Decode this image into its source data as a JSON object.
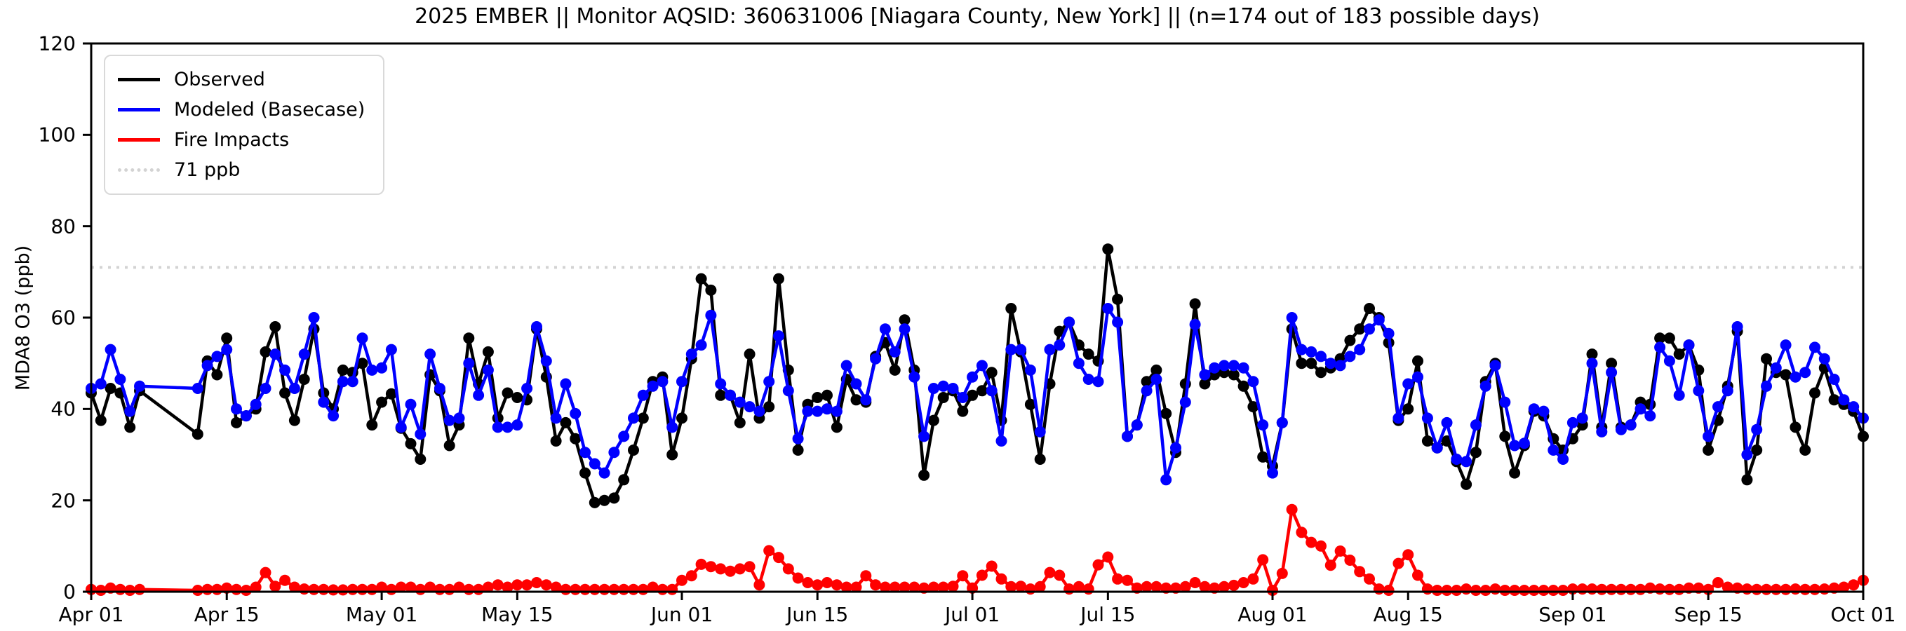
{
  "title": "2025 EMBER || Monitor AQSID: 360631006 [Niagara County, New York] || (n=174 out of 183 possible days)",
  "y_axis": {
    "label": "MDA8 O3 (ppb)",
    "tick_labels": [
      "0",
      "20",
      "40",
      "60",
      "80",
      "100",
      "120"
    ],
    "tick_values": [
      0,
      20,
      40,
      60,
      80,
      100,
      120
    ],
    "lim": [
      0,
      120
    ]
  },
  "x_axis": {
    "tick_labels": [
      "Apr 01",
      "Apr 15",
      "May 01",
      "May 15",
      "Jun 01",
      "Jun 15",
      "Jul 01",
      "Jul 15",
      "Aug 01",
      "Aug 15",
      "Sep 01",
      "Sep 15",
      "Oct 01"
    ],
    "tick_days": [
      0,
      14,
      30,
      44,
      61,
      75,
      91,
      105,
      122,
      136,
      153,
      167,
      183
    ],
    "lim_days": [
      0,
      183
    ]
  },
  "legend": {
    "items": [
      {
        "label": "Observed",
        "color": "#000000",
        "style": "solid"
      },
      {
        "label": "Modeled (Basecase)",
        "color": "#0000ff",
        "style": "solid"
      },
      {
        "label": "Fire Impacts",
        "color": "#ff0000",
        "style": "solid"
      },
      {
        "label": "71 ppb",
        "color": "#d3d3d3",
        "style": "dotted"
      }
    ]
  },
  "threshold": {
    "value": 71,
    "label": "71 ppb",
    "color": "#d3d3d3"
  },
  "chart_data": {
    "type": "line",
    "x_start_date": "Apr 01",
    "x_end_date": "Oct 01",
    "days_total": 184,
    "title": "2025 EMBER || Monitor AQSID: 360631006 [Niagara County, New York] || (n=174 out of 183 possible days)",
    "xlabel": "",
    "ylabel": "MDA8 O3 (ppb)",
    "ylim": [
      0,
      120
    ],
    "grid": false,
    "legend_position": "upper left",
    "threshold_line": 71,
    "series": [
      {
        "name": "Observed",
        "color": "#000000",
        "marker": "circle",
        "values": [
          43.5,
          37.5,
          44.5,
          43.5,
          36,
          44,
          null,
          null,
          null,
          null,
          null,
          34.5,
          50.5,
          47.5,
          55.5,
          37,
          38.5,
          40,
          52.5,
          58,
          43.5,
          37.5,
          46.5,
          57.5,
          43.5,
          40,
          48.5,
          48,
          50,
          36.5,
          41.5,
          43.3,
          35.8,
          32.4,
          29,
          47.5,
          44,
          32,
          36.5,
          55.5,
          45.5,
          52.5,
          38,
          43.5,
          42.5,
          42,
          57.5,
          47,
          33,
          37,
          33.5,
          26,
          19.5,
          20,
          20.5,
          24.5,
          31,
          38,
          46,
          47,
          30,
          38,
          51,
          68.5,
          66,
          43,
          43,
          37,
          52,
          38,
          40.5,
          68.5,
          48.5,
          31,
          41,
          42.5,
          43,
          36,
          46.5,
          42,
          41.5,
          51.5,
          54.5,
          48.5,
          59.5,
          48.5,
          25.5,
          37.5,
          42.5,
          44,
          39.5,
          43,
          44,
          48,
          37.5,
          62,
          52.5,
          41,
          29,
          45.5,
          57,
          59,
          54,
          52,
          50.5,
          75,
          64,
          34,
          36.5,
          46,
          48.5,
          39,
          30.5,
          45.5,
          63,
          45.5,
          47.5,
          48,
          47.5,
          45,
          40.5,
          29.5,
          27.5,
          37,
          57.5,
          50,
          50,
          48,
          49,
          51,
          55,
          57.5,
          62,
          60,
          54.5,
          37.5,
          40,
          50.5,
          33,
          31.5,
          33,
          28.5,
          23.5,
          30.5,
          46,
          50,
          34,
          26,
          32,
          39.5,
          38.5,
          33.5,
          31,
          33.5,
          36.5,
          52,
          36,
          50,
          36,
          36.5,
          41.5,
          41,
          55.5,
          55.5,
          52,
          54,
          48.5,
          31,
          37.5,
          45,
          57,
          24.5,
          31,
          51,
          48,
          47.5,
          36,
          31,
          43.5,
          49,
          42,
          41,
          39.5,
          34
        ]
      },
      {
        "name": "Modeled (Basecase)",
        "color": "#0000ff",
        "marker": "circle",
        "values": [
          44.5,
          45.5,
          53,
          46.5,
          39.5,
          45,
          null,
          null,
          null,
          null,
          null,
          44.5,
          49.5,
          51.5,
          53,
          40,
          38.5,
          41,
          44.5,
          52,
          48.5,
          44.5,
          52,
          60,
          41.5,
          38.5,
          46,
          46,
          55.5,
          48.5,
          49,
          53,
          36,
          41,
          34.5,
          52,
          44.5,
          37.5,
          38,
          50,
          43,
          48.5,
          36,
          36,
          36.5,
          44.5,
          58,
          50.5,
          38,
          45.5,
          39,
          30.5,
          28,
          26,
          30.5,
          34,
          38,
          43,
          45,
          46,
          36,
          46,
          52,
          54,
          60.5,
          45.5,
          43,
          41.5,
          40.5,
          39.5,
          46,
          56,
          44,
          33.5,
          39.5,
          39.5,
          40,
          39.5,
          49.5,
          45.5,
          42,
          51,
          57.5,
          52.5,
          57.5,
          47,
          34,
          44.5,
          45,
          44.5,
          42.5,
          47,
          49.5,
          44,
          33,
          53,
          53,
          48.5,
          35,
          53,
          54,
          59,
          50,
          46.5,
          46,
          62,
          59,
          34,
          36.5,
          44,
          46.5,
          24.5,
          31.5,
          41.5,
          58.5,
          47.5,
          49,
          49.5,
          49.5,
          49,
          46,
          36.5,
          26,
          37,
          60,
          53,
          52.5,
          51.5,
          50,
          49.5,
          51.5,
          53,
          57.5,
          59.5,
          56.5,
          38,
          45.5,
          47,
          38,
          31.5,
          37,
          29,
          28.5,
          36.5,
          45,
          49.5,
          41.5,
          32,
          32.5,
          40,
          39.5,
          31,
          29,
          37,
          38,
          50,
          35,
          48,
          35.5,
          36.5,
          40,
          38.5,
          53.5,
          50.5,
          43,
          54,
          44,
          34,
          40.5,
          44,
          58,
          30,
          35.5,
          45,
          49,
          54,
          47,
          48,
          53.5,
          51,
          46.5,
          42,
          40.5,
          38
        ]
      },
      {
        "name": "Fire Impacts",
        "color": "#ff0000",
        "marker": "circle",
        "values": [
          0.5,
          0.3,
          0.8,
          0.5,
          0.3,
          0.5,
          null,
          null,
          null,
          null,
          null,
          0.3,
          0.5,
          0.5,
          0.8,
          0.5,
          0.3,
          1,
          4.2,
          1.2,
          2.5,
          1,
          0.6,
          0.5,
          0.5,
          0.4,
          0.4,
          0.5,
          0.5,
          0.5,
          1,
          0.5,
          1,
          1,
          0.5,
          1,
          0.5,
          0.5,
          1,
          0.5,
          0.5,
          1,
          1.5,
          1,
          1.5,
          1.5,
          2,
          1.5,
          1,
          0.5,
          0.5,
          0.5,
          0.5,
          0.5,
          0.5,
          0.5,
          0.5,
          0.5,
          1,
          0.5,
          0.5,
          2.5,
          3.5,
          6,
          5.5,
          5,
          4.5,
          5,
          5.5,
          1.5,
          9,
          7.5,
          5,
          3,
          2,
          1.5,
          2,
          1.5,
          1,
          1,
          3.5,
          1.5,
          1,
          1,
          1,
          1,
          0.8,
          1,
          1,
          1.2,
          3.5,
          0.8,
          3.6,
          5.6,
          2.8,
          1.1,
          1.2,
          0.6,
          1.1,
          4.2,
          3.6,
          0.6,
          1.1,
          0.6,
          5.9,
          7.6,
          2.8,
          2.5,
          0.8,
          1.1,
          1.1,
          0.8,
          0.8,
          1.1,
          2,
          1.1,
          0.8,
          1.1,
          1.4,
          2,
          2.8,
          7,
          0.3,
          4,
          18,
          13,
          10.8,
          10,
          5.8,
          8.9,
          6.9,
          4.4,
          2.8,
          0.6,
          0.3,
          6.2,
          8.1,
          3.6,
          0.6,
          0.3,
          0.3,
          0.3,
          0.6,
          0.3,
          0.3,
          0.6,
          0.3,
          0.3,
          0.3,
          0.3,
          0.3,
          0.3,
          0.3,
          0.6,
          0.6,
          0.6,
          0.5,
          0.5,
          0.5,
          0.5,
          0.5,
          0.8,
          0.6,
          0.5,
          0.5,
          0.8,
          0.8,
          0.5,
          2,
          1,
          0.8,
          0.6,
          0.5,
          0.5,
          0.5,
          0.5,
          0.6,
          0.5,
          0.5,
          0.6,
          0.8,
          1,
          1.5,
          2.5
        ]
      }
    ]
  }
}
